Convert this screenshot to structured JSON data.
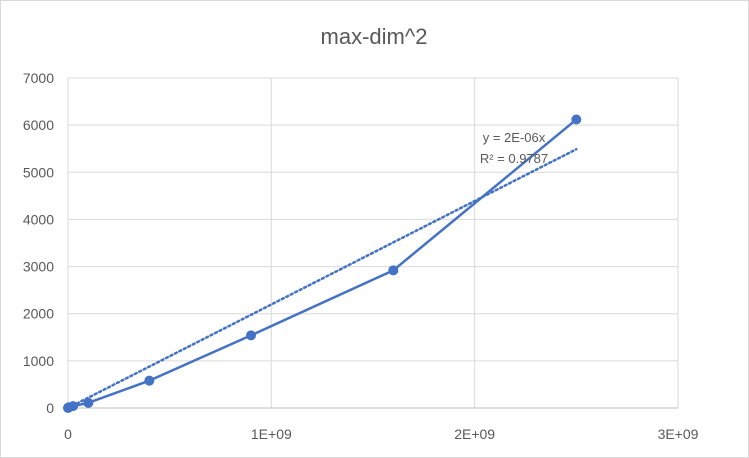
{
  "chart_data": {
    "type": "scatter",
    "title": "max-dim^2",
    "xlabel": "",
    "ylabel": "",
    "xlim": [
      0,
      3000000000
    ],
    "ylim": [
      0,
      7000
    ],
    "x_ticks": [
      0,
      1000000000,
      2000000000,
      3000000000
    ],
    "x_tick_labels": [
      "0",
      "1E+09",
      "2E+09",
      "3E+09"
    ],
    "y_ticks": [
      0,
      1000,
      2000,
      3000,
      4000,
      5000,
      6000,
      7000
    ],
    "y_tick_labels": [
      "0",
      "1000",
      "2000",
      "3000",
      "4000",
      "5000",
      "6000",
      "7000"
    ],
    "grid": true,
    "legend": "none",
    "series": [
      {
        "color": "#4472c4",
        "style": "line-with-markers",
        "points": [
          [
            0,
            0
          ],
          [
            1000000,
            8
          ],
          [
            4000000,
            15
          ],
          [
            25000000,
            40
          ],
          [
            100000000,
            110
          ],
          [
            400000000,
            580
          ],
          [
            900000000,
            1540
          ],
          [
            1600000000,
            2920
          ],
          [
            2500000000,
            6120
          ]
        ]
      }
    ],
    "trendline": {
      "type": "linear",
      "color": "#4472c4",
      "style": "dotted",
      "slope": 2.1955e-06,
      "x_range": [
        0,
        2500000000
      ],
      "equation": "y = 2E-06x",
      "r_squared": "R² = 0.9787"
    }
  }
}
